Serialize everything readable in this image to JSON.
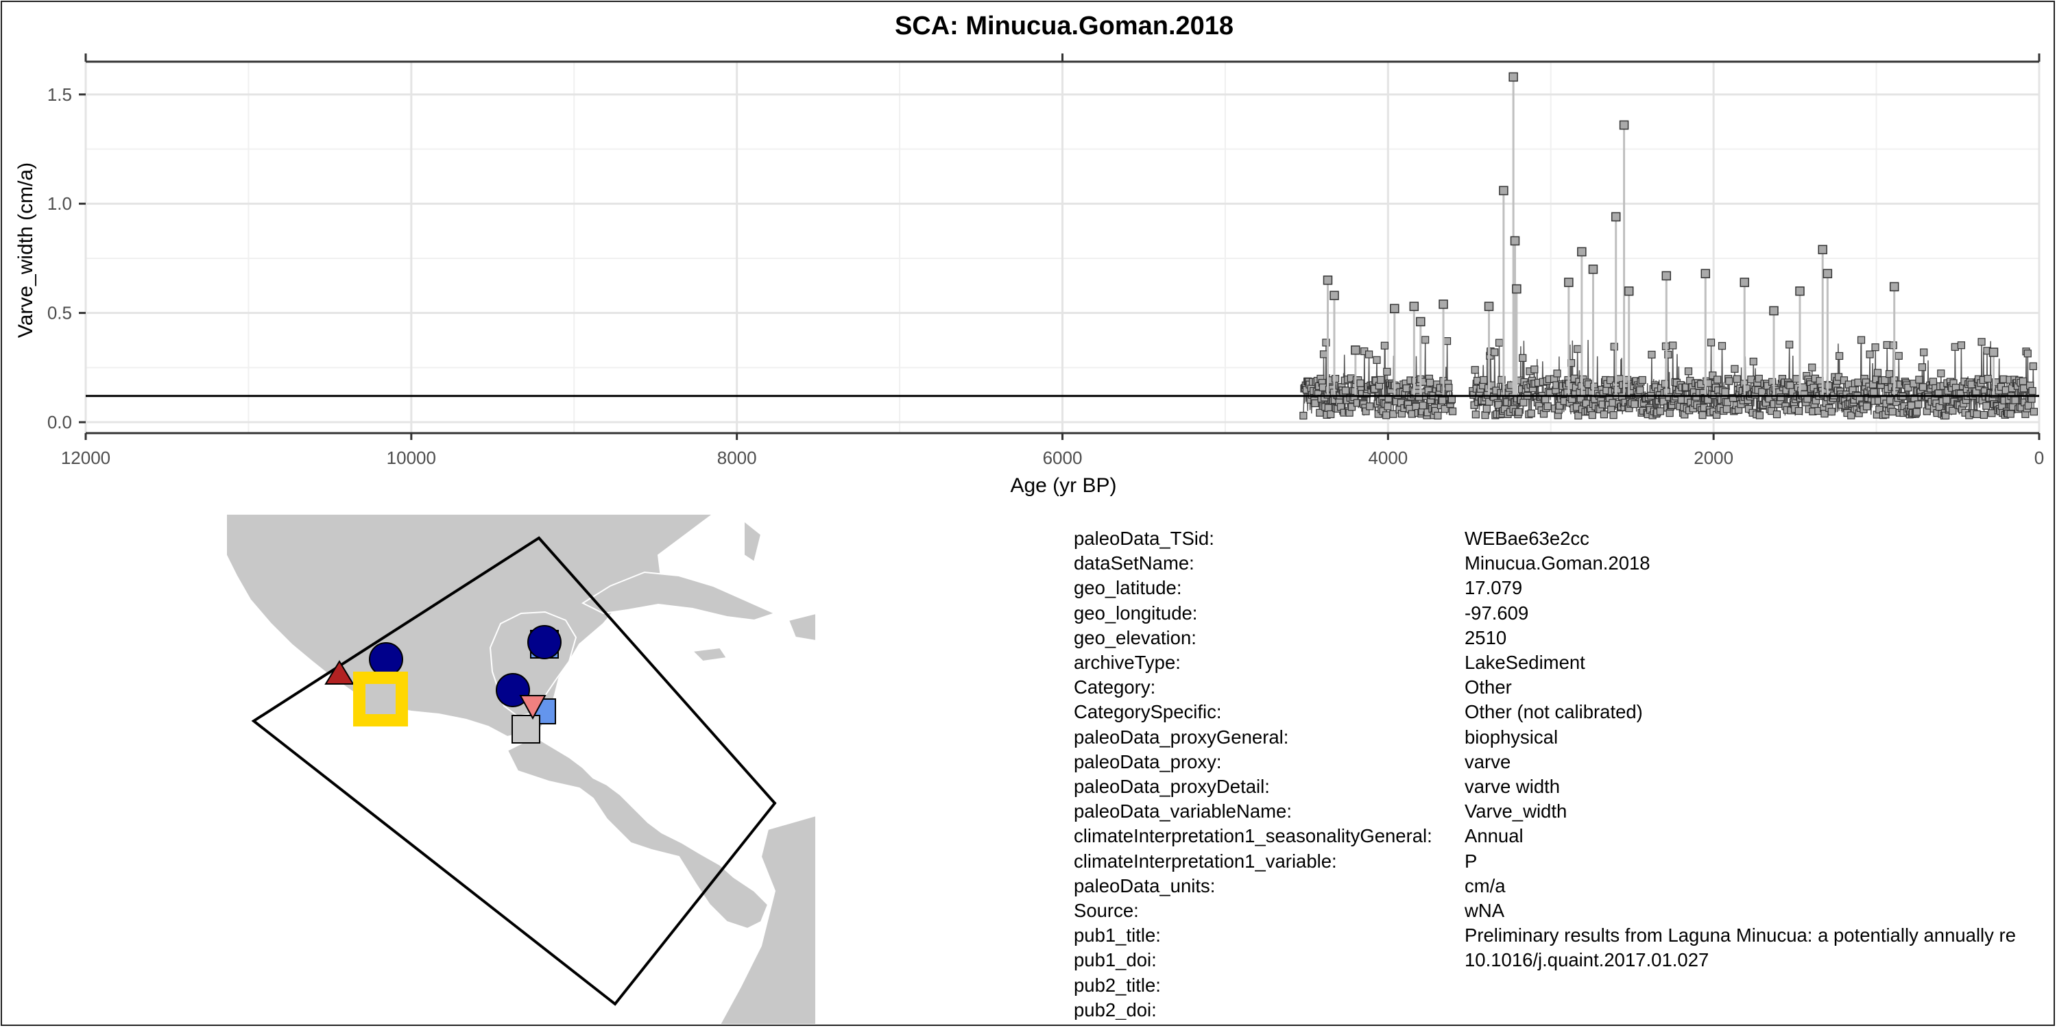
{
  "chart_data": {
    "type": "line",
    "title": "SCA: Minucua.Goman.2018",
    "xlabel": "Age (yr BP)",
    "ylabel": "Varve_width (cm/a)",
    "xlim": [
      12000,
      0
    ],
    "ylim": [
      -0.05,
      1.65
    ],
    "x_ticks": [
      12000,
      10000,
      8000,
      6000,
      4000,
      2000,
      0
    ],
    "x_tick_labels": [
      "12000",
      "10000",
      "8000",
      "6000",
      "4000",
      "2000",
      "0"
    ],
    "y_ticks": [
      0.0,
      0.5,
      1.0,
      1.5
    ],
    "y_tick_labels": [
      "0.0",
      "0.5",
      "1.0",
      "1.5"
    ],
    "mean_line": 0.12,
    "grid": true,
    "marker_color": "#aaaaaa",
    "line_color": "#bfbfbf",
    "segments": [
      [
        4520,
        3600
      ],
      [
        3480,
        3000
      ],
      [
        2980,
        1900
      ],
      [
        1880,
        30
      ]
    ],
    "peaks": [
      {
        "x": 4370,
        "y": 0.65
      },
      {
        "x": 4330,
        "y": 0.58
      },
      {
        "x": 4200,
        "y": 0.33
      },
      {
        "x": 3960,
        "y": 0.52
      },
      {
        "x": 3840,
        "y": 0.53
      },
      {
        "x": 3800,
        "y": 0.46
      },
      {
        "x": 3660,
        "y": 0.54
      },
      {
        "x": 3380,
        "y": 0.53
      },
      {
        "x": 3290,
        "y": 1.06
      },
      {
        "x": 3230,
        "y": 1.58
      },
      {
        "x": 3220,
        "y": 0.83
      },
      {
        "x": 3210,
        "y": 0.61
      },
      {
        "x": 2890,
        "y": 0.64
      },
      {
        "x": 2810,
        "y": 0.78
      },
      {
        "x": 2740,
        "y": 0.7
      },
      {
        "x": 2600,
        "y": 0.94
      },
      {
        "x": 2550,
        "y": 1.36
      },
      {
        "x": 2520,
        "y": 0.6
      },
      {
        "x": 2290,
        "y": 0.67
      },
      {
        "x": 2050,
        "y": 0.68
      },
      {
        "x": 1810,
        "y": 0.64
      },
      {
        "x": 1630,
        "y": 0.51
      },
      {
        "x": 1470,
        "y": 0.6
      },
      {
        "x": 1330,
        "y": 0.79
      },
      {
        "x": 1300,
        "y": 0.68
      },
      {
        "x": 890,
        "y": 0.62
      },
      {
        "x": 280,
        "y": 0.32
      }
    ]
  },
  "map": {
    "land_color": "#c8c8c8",
    "box_color": "#000000",
    "markers": [
      {
        "shape": "circle",
        "color": "#00008b"
      },
      {
        "shape": "circle",
        "color": "#00008b"
      },
      {
        "shape": "circle",
        "color": "#00008b"
      },
      {
        "shape": "triangle-up",
        "color": "#b22222"
      },
      {
        "shape": "triangle-down",
        "color": "#f08080"
      },
      {
        "shape": "square",
        "color": "#6495ed"
      },
      {
        "shape": "square",
        "color": "#c8c8c8"
      },
      {
        "shape": "square-highlight",
        "color": "#ffd700"
      }
    ]
  },
  "metadata": [
    {
      "key": "paleoData_TSid:",
      "value": "WEBae63e2cc"
    },
    {
      "key": "dataSetName:",
      "value": "Minucua.Goman.2018"
    },
    {
      "key": "geo_latitude:",
      "value": "17.079"
    },
    {
      "key": "geo_longitude:",
      "value": "-97.609"
    },
    {
      "key": "geo_elevation:",
      "value": "2510"
    },
    {
      "key": "archiveType:",
      "value": "LakeSediment"
    },
    {
      "key": "Category:",
      "value": "Other"
    },
    {
      "key": "CategorySpecific:",
      "value": "Other (not calibrated)"
    },
    {
      "key": "paleoData_proxyGeneral:",
      "value": "biophysical"
    },
    {
      "key": "paleoData_proxy:",
      "value": "varve"
    },
    {
      "key": "paleoData_proxyDetail:",
      "value": "varve width"
    },
    {
      "key": "paleoData_variableName:",
      "value": "Varve_width"
    },
    {
      "key": "climateInterpretation1_seasonalityGeneral:",
      "value": "Annual"
    },
    {
      "key": "climateInterpretation1_variable:",
      "value": "P"
    },
    {
      "key": "paleoData_units:",
      "value": "cm/a"
    },
    {
      "key": "Source:",
      "value": "wNA"
    },
    {
      "key": "pub1_title:",
      "value": "Preliminary results from Laguna Minucua: a potentially annually re"
    },
    {
      "key": "pub1_doi:",
      "value": "10.1016/j.quaint.2017.01.027"
    },
    {
      "key": "pub2_title:",
      "value": ""
    },
    {
      "key": "pub2_doi:",
      "value": ""
    }
  ]
}
